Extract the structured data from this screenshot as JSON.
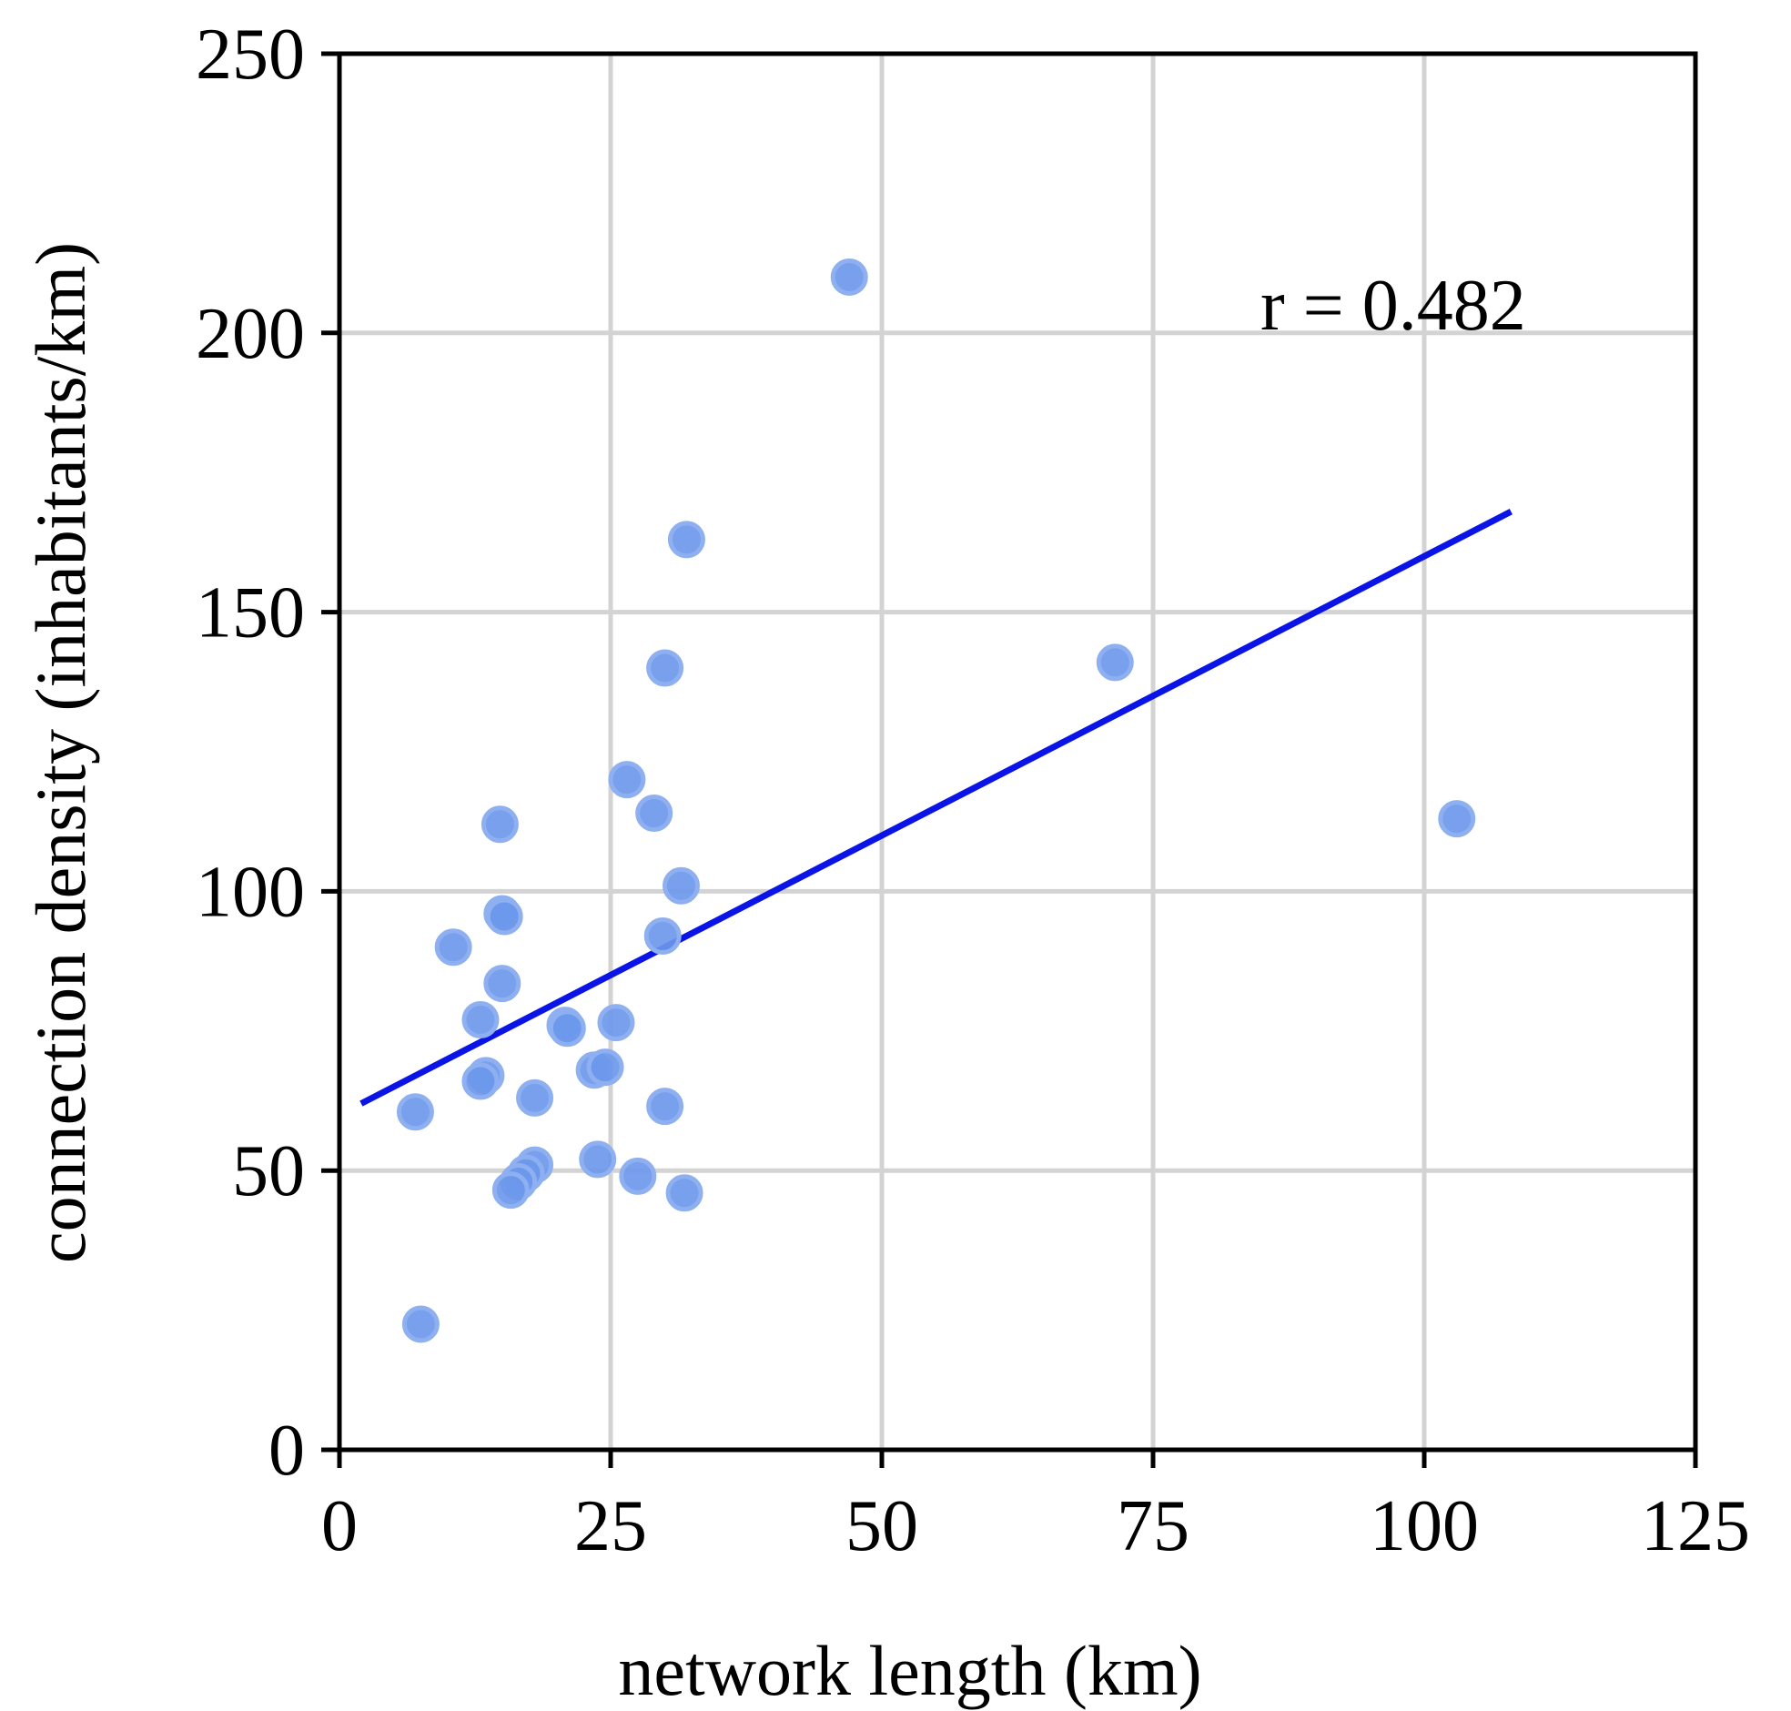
{
  "chart_data": {
    "type": "scatter",
    "title": "",
    "xlabel": "network length (km)",
    "ylabel": "connection density (inhabitants/km)",
    "xlim": [
      0,
      125
    ],
    "ylim": [
      0,
      250
    ],
    "xticks": [
      0,
      25,
      50,
      75,
      100,
      125
    ],
    "yticks": [
      0,
      50,
      100,
      150,
      200,
      250
    ],
    "grid": true,
    "annotation": "r = 0.482",
    "point_color": "#6d98ec",
    "line_color": "#0a14e6",
    "points": [
      {
        "x": 47,
        "y": 210
      },
      {
        "x": 32,
        "y": 163
      },
      {
        "x": 30,
        "y": 140
      },
      {
        "x": 71.5,
        "y": 141
      },
      {
        "x": 103,
        "y": 113
      },
      {
        "x": 26.5,
        "y": 120
      },
      {
        "x": 29,
        "y": 114
      },
      {
        "x": 14.8,
        "y": 112
      },
      {
        "x": 31.5,
        "y": 101
      },
      {
        "x": 15,
        "y": 96
      },
      {
        "x": 15.2,
        "y": 95.5
      },
      {
        "x": 29.8,
        "y": 92
      },
      {
        "x": 10.5,
        "y": 90
      },
      {
        "x": 15,
        "y": 83.5
      },
      {
        "x": 13,
        "y": 77
      },
      {
        "x": 20.8,
        "y": 76
      },
      {
        "x": 21,
        "y": 75.5
      },
      {
        "x": 25.5,
        "y": 76.5
      },
      {
        "x": 23.5,
        "y": 68
      },
      {
        "x": 24.5,
        "y": 68.5
      },
      {
        "x": 13.5,
        "y": 67
      },
      {
        "x": 13,
        "y": 66
      },
      {
        "x": 18,
        "y": 63
      },
      {
        "x": 30,
        "y": 61.5
      },
      {
        "x": 7,
        "y": 60.5
      },
      {
        "x": 18,
        "y": 51
      },
      {
        "x": 17.2,
        "y": 49.5
      },
      {
        "x": 16.5,
        "y": 48
      },
      {
        "x": 15.8,
        "y": 46.5
      },
      {
        "x": 23.8,
        "y": 52
      },
      {
        "x": 27.5,
        "y": 49
      },
      {
        "x": 31.8,
        "y": 46
      },
      {
        "x": 7.5,
        "y": 22.5
      }
    ],
    "trendline": {
      "x": [
        2,
        108
      ],
      "y": [
        62,
        168
      ]
    }
  }
}
